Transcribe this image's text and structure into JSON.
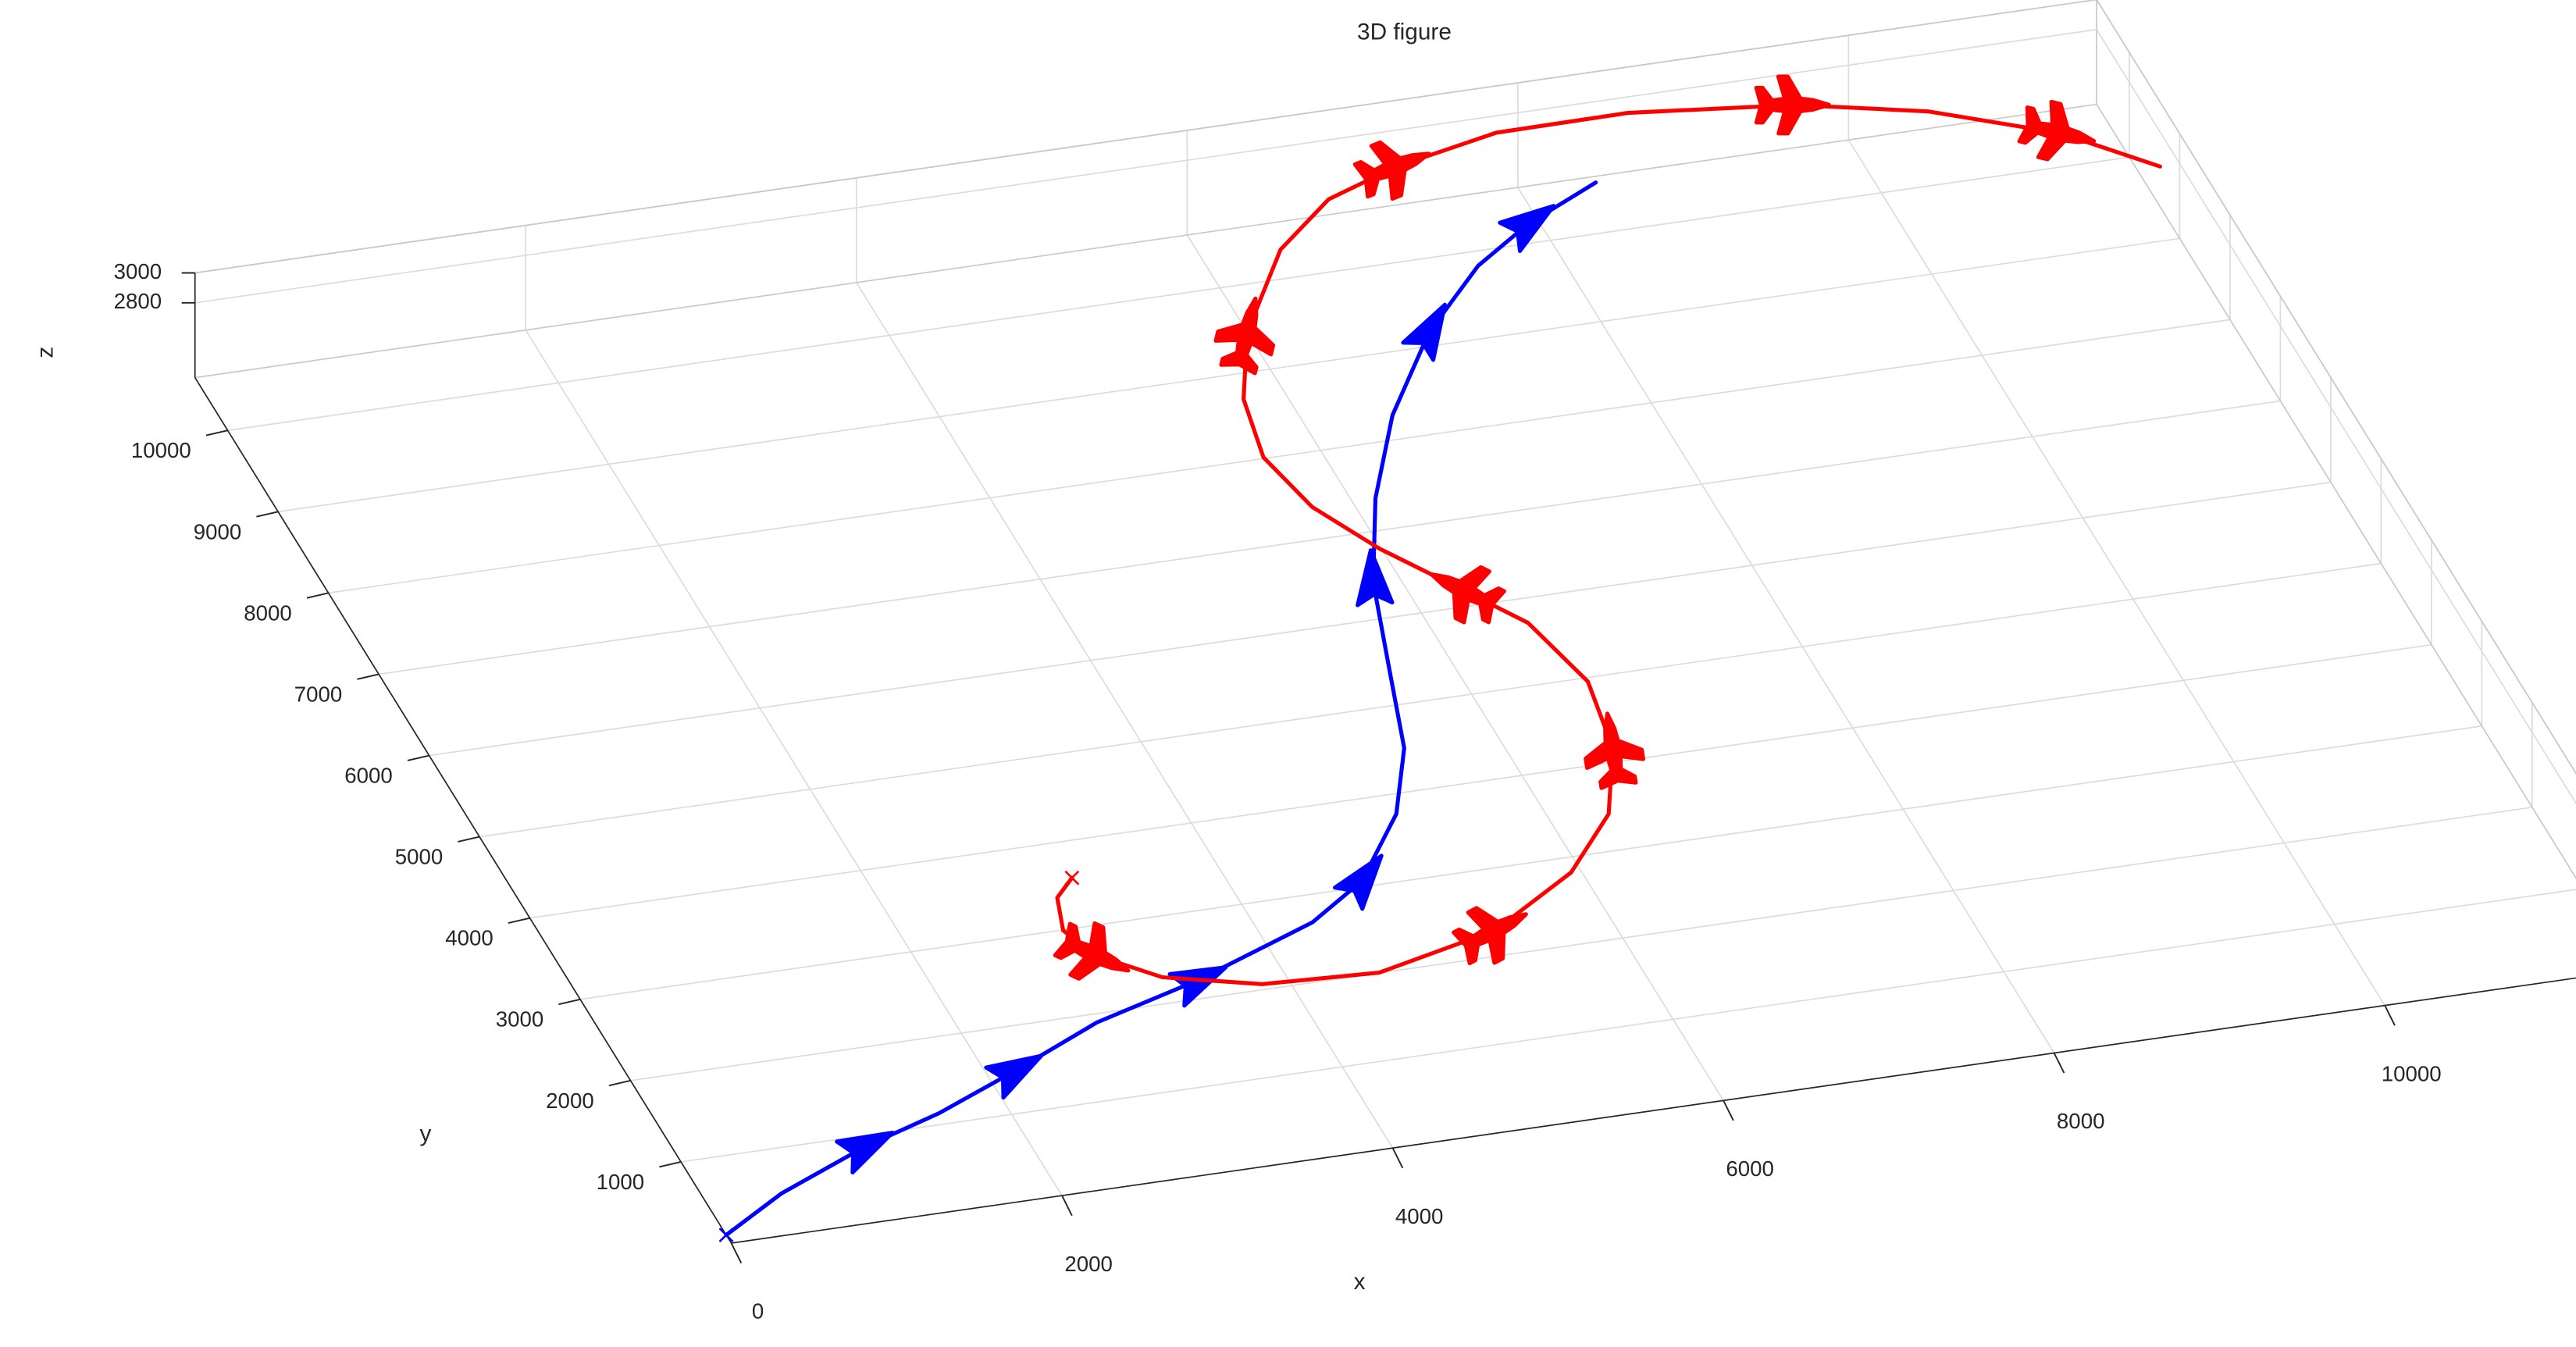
{
  "chart_data": {
    "type": "line3d",
    "title": "3D figure",
    "xlabel": "x",
    "ylabel": "y",
    "zlabel": "z",
    "xlim": [
      0,
      11500
    ],
    "ylim": [
      0,
      10650
    ],
    "zlim": [
      2300,
      3000
    ],
    "xticks": [
      0,
      2000,
      4000,
      6000,
      8000,
      10000
    ],
    "yticks": [
      1000,
      2000,
      3000,
      4000,
      5000,
      6000,
      7000,
      8000,
      9000,
      10000
    ],
    "zticks": [
      2800,
      3000
    ],
    "grid": true,
    "series": [
      {
        "color": "#0000ff",
        "x": [
          0,
          450,
          1070,
          1600,
          2160,
          2790,
          3490,
          4330,
          4750,
          5170,
          5440,
          5640,
          5840,
          6140,
          6520,
          7010,
          7510,
          7930,
          8450
        ],
        "y": [
          100,
          480,
          870,
          1130,
          1480,
          1900,
          2210,
          2680,
          3070,
          3770,
          4500,
          5470,
          6430,
          7370,
          8280,
          9160,
          9830,
          10220,
          10580
        ],
        "z": [
          2300,
          2300,
          2300,
          2300,
          2300,
          2300,
          2300,
          2300,
          2300,
          2300,
          2300,
          2300,
          2300,
          2300,
          2300,
          2300,
          2300,
          2300,
          2300
        ]
      },
      {
        "color": "#ff0000",
        "x": [
          2840,
          2690,
          2610,
          2710,
          3000,
          3530,
          4220,
          5010,
          5630,
          6040,
          6290,
          6380,
          6250,
          6000,
          5680,
          5450,
          5350,
          5440,
          5690,
          6160,
          6600,
          7090,
          7760,
          8560,
          9510,
          10230,
          10890,
          11330
        ],
        "y": [
          2560,
          2360,
          1980,
          1640,
          1290,
          1050,
          990,
          1280,
          1810,
          2410,
          3150,
          3940,
          4700,
          5180,
          5780,
          6360,
          7000,
          7690,
          8440,
          9320,
          9810,
          10070,
          10290,
          10300,
          10120,
          9830,
          9370,
          8830
        ],
        "z": [
          2900,
          2900,
          2900,
          2900,
          2900,
          2900,
          2900,
          2900,
          2900,
          2900,
          2900,
          2900,
          2900,
          2900,
          2900,
          2900,
          2900,
          2900,
          2900,
          2900,
          2900,
          2900,
          2900,
          2900,
          2900,
          2900,
          2900,
          2900
        ]
      }
    ]
  }
}
